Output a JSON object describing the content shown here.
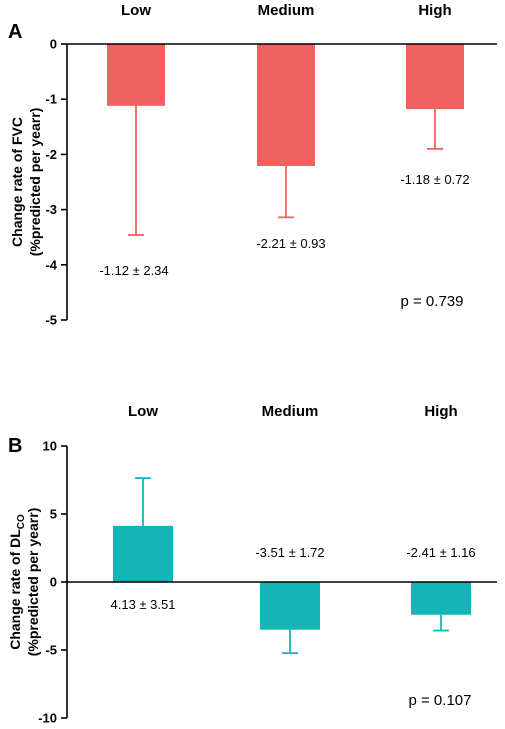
{
  "chart_data": [
    {
      "type": "bar",
      "panel": "A",
      "categories": [
        "Low",
        "Medium",
        "High"
      ],
      "values": [
        -1.12,
        -2.21,
        -1.18
      ],
      "errors": [
        2.34,
        0.93,
        0.72
      ],
      "data_labels": [
        "-1.12 ± 2.34",
        "-2.21 ± 0.93",
        "-1.18 ± 0.72"
      ],
      "ylabel_line1": "Change rate of FVC",
      "ylabel_line2": "(%predicted per yearr)",
      "ylim": [
        -5,
        0
      ],
      "yticks": [
        0,
        -1,
        -2,
        -3,
        -4,
        -5
      ],
      "p_value": "p = 0.739",
      "bar_color": "#f0625f",
      "grid": false
    },
    {
      "type": "bar",
      "panel": "B",
      "categories": [
        "Low",
        "Medium",
        "High"
      ],
      "values": [
        4.13,
        -3.51,
        -2.41
      ],
      "errors": [
        3.51,
        1.72,
        1.16
      ],
      "data_labels": [
        "4.13 ± 3.51",
        "-3.51 ± 1.72",
        "-2.41 ± 1.16"
      ],
      "ylabel_line1_main": "Change rate of DL",
      "ylabel_line1_sub": "CO",
      "ylabel_line2": "(%predicted per yearr)",
      "ylim": [
        -10,
        10
      ],
      "yticks": [
        10,
        5,
        0,
        -5,
        -10
      ],
      "p_value": "p = 0.107",
      "bar_color": "#13b5b8",
      "grid": false
    }
  ]
}
